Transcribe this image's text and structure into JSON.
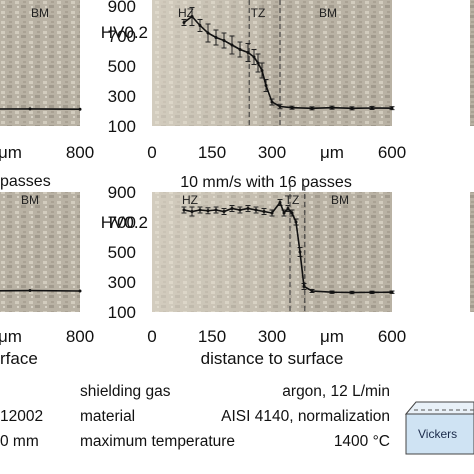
{
  "chart_data": [
    {
      "id": "top-left",
      "type": "line",
      "x_ticks": [
        "μm",
        "800"
      ],
      "y_ticks": [],
      "xlim": [
        400,
        800
      ],
      "ylim": [
        100,
        900
      ],
      "zones": [
        {
          "label": "BM",
          "x": 760
        }
      ],
      "dashed_lines": [
        405
      ],
      "title_fragment": "",
      "xlabel_fragment": "",
      "series": [
        {
          "x": [
            400,
            450,
            500,
            550,
            600,
            650,
            700,
            750,
            800
          ],
          "y": [
            215,
            212,
            218,
            214,
            212,
            215,
            213,
            214,
            212
          ]
        }
      ]
    },
    {
      "id": "top-middle",
      "type": "line",
      "ylabel": "HV0.2",
      "x_ticks": [
        "0",
        "150",
        "300",
        "μm",
        "600"
      ],
      "y_ticks": [
        "900",
        "700",
        "500",
        "300",
        "100"
      ],
      "xlim": [
        0,
        600
      ],
      "ylim": [
        100,
        900
      ],
      "zones": [
        {
          "label": "HZ",
          "x": 85
        },
        {
          "label": "TZ",
          "x": 265
        },
        {
          "label": "BM",
          "x": 440
        }
      ],
      "dashed_lines": [
        243,
        320
      ],
      "series": [
        {
          "x": [
            80,
            100,
            120,
            140,
            160,
            180,
            200,
            220,
            240,
            255,
            265,
            275,
            285,
            300,
            320,
            350,
            400,
            450,
            500,
            550,
            600
          ],
          "y": [
            790,
            830,
            770,
            720,
            690,
            670,
            640,
            610,
            590,
            560,
            520,
            470,
            370,
            260,
            230,
            222,
            218,
            222,
            218,
            220,
            219
          ],
          "err": [
            20,
            60,
            40,
            60,
            50,
            50,
            60,
            50,
            60,
            50,
            60,
            50,
            40,
            20,
            15,
            10,
            10,
            10,
            10,
            10,
            10
          ]
        }
      ]
    },
    {
      "id": "bottom-left",
      "type": "line",
      "x_ticks": [
        "μm",
        "800"
      ],
      "y_ticks": [],
      "xlim": [
        400,
        800
      ],
      "ylim": [
        100,
        900
      ],
      "zones": [
        {
          "label": "BM",
          "x": 750
        }
      ],
      "dashed_lines": [
        405
      ],
      "series": [
        {
          "x": [
            400,
            420,
            450,
            500,
            550,
            600,
            650,
            700,
            750,
            800
          ],
          "y": [
            320,
            255,
            240,
            245,
            240,
            242,
            238,
            240,
            243,
            240
          ]
        }
      ]
    },
    {
      "id": "bottom-middle",
      "type": "line",
      "ylabel": "HV0.2",
      "title": "10 mm/s with 16 passes",
      "xlabel": "distance to surface",
      "x_ticks": [
        "0",
        "150",
        "300",
        "μm",
        "600"
      ],
      "y_ticks": [
        "900",
        "700",
        "500",
        "300",
        "100"
      ],
      "xlim": [
        0,
        600
      ],
      "ylim": [
        100,
        900
      ],
      "zones": [
        {
          "label": "HZ",
          "x": 95
        },
        {
          "label": "TZ",
          "x": 350
        },
        {
          "label": "BM",
          "x": 470
        }
      ],
      "dashed_lines": [
        345,
        382
      ],
      "series": [
        {
          "x": [
            80,
            100,
            120,
            140,
            160,
            180,
            200,
            220,
            240,
            260,
            280,
            300,
            320,
            330,
            340,
            350,
            360,
            370,
            380,
            400,
            450,
            500,
            550,
            600
          ],
          "y": [
            780,
            770,
            780,
            775,
            780,
            770,
            790,
            780,
            790,
            780,
            770,
            760,
            830,
            760,
            790,
            760,
            700,
            500,
            270,
            240,
            232,
            230,
            231,
            232
          ],
          "err": [
            20,
            30,
            20,
            20,
            20,
            20,
            20,
            20,
            20,
            20,
            20,
            20,
            20,
            20,
            20,
            20,
            20,
            30,
            20,
            10,
            8,
            8,
            8,
            8
          ]
        }
      ]
    }
  ],
  "fragments": {
    "top_left_title": "passes",
    "bottom_left_xlabel": "rface"
  },
  "info_table": [
    {
      "prefix": "",
      "key": "shielding gas",
      "value": "argon, 12 L/min"
    },
    {
      "prefix": "12002",
      "key": "material",
      "value": "AISI 4140, normalization"
    },
    {
      "prefix": "0 mm",
      "key": "maximum temperature",
      "value": "1400 °C"
    }
  ],
  "schematic": {
    "label": "Vickers",
    "color": "#cfe3f3"
  }
}
